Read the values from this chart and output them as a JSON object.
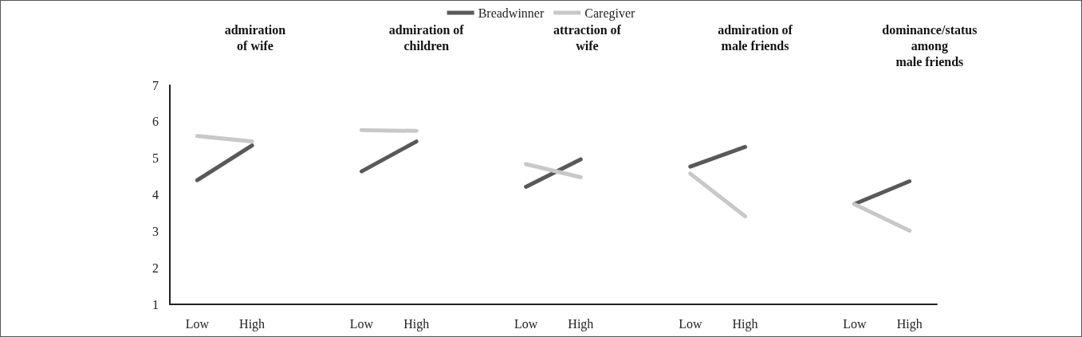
{
  "chart_data": {
    "type": "line",
    "categories": [
      "Low",
      "High",
      null,
      "Low",
      "High",
      null,
      "Low",
      "High",
      null,
      "Low",
      "High",
      null,
      "Low",
      "High"
    ],
    "series": [
      {
        "name": "Breadwinner",
        "color": "#595959",
        "values": [
          4.4,
          5.35,
          null,
          4.64,
          5.46,
          null,
          4.22,
          4.97,
          null,
          4.77,
          5.31,
          null,
          3.75,
          4.37
        ]
      },
      {
        "name": "Caregiver",
        "color": "#c8c8c8",
        "values": [
          5.61,
          5.46,
          null,
          5.77,
          5.75,
          null,
          4.84,
          4.48,
          null,
          4.58,
          3.41,
          null,
          3.74,
          3.02
        ]
      }
    ],
    "ylim": [
      1,
      7
    ],
    "yticks": [
      1,
      2,
      3,
      4,
      5,
      6,
      7
    ],
    "grid": false,
    "legend": "top",
    "marker": "none",
    "line_style": "solid",
    "annotations": [
      "admiration\nof wife",
      "admiration of\nchildren",
      "attraction of\nwife",
      "admiration of\nmale friends",
      "dominance/status\namong\nmale friends"
    ]
  }
}
